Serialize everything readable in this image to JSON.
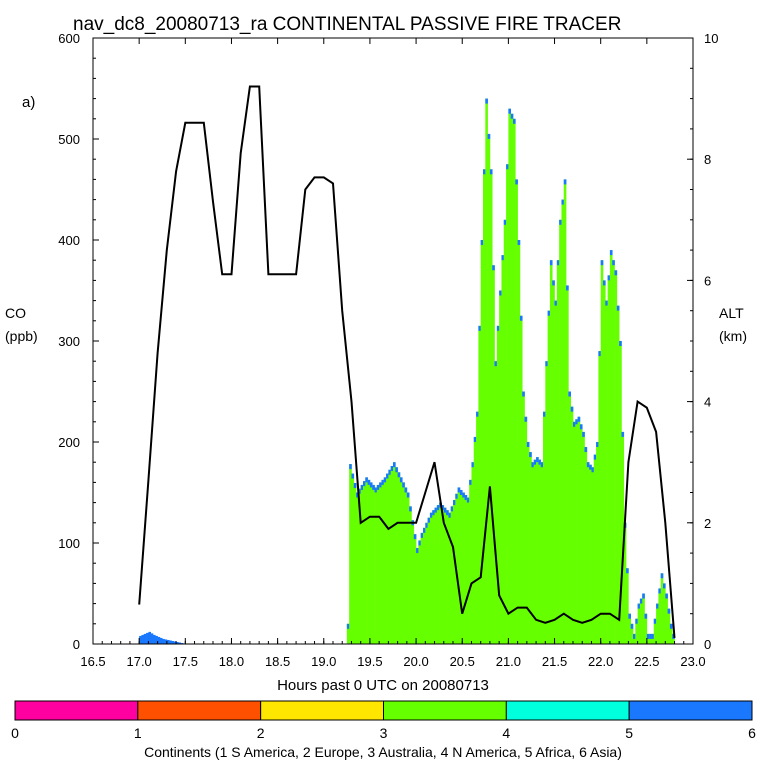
{
  "chart_data": {
    "type": "bar",
    "title": "nav_dc8_20080713_ra CONTINENTAL PASSIVE FIRE TRACER",
    "panel_label": "a)",
    "xlabel": "Hours past 0 UTC on 20080713",
    "ylabel_left": "CO",
    "ylabel_left_units": "(ppb)",
    "ylabel_right": "ALT",
    "ylabel_right_units": "(km)",
    "xlim": [
      16.5,
      23.0
    ],
    "ylim_left": [
      0,
      600
    ],
    "ylim_right": [
      0,
      10
    ],
    "x_ticks": [
      "16.5",
      "17.0",
      "17.5",
      "18.0",
      "18.5",
      "19.0",
      "19.5",
      "20.0",
      "20.5",
      "21.0",
      "21.5",
      "22.0",
      "22.5",
      "23.0"
    ],
    "y_ticks_left": [
      "0",
      "100",
      "200",
      "300",
      "400",
      "500",
      "600"
    ],
    "y_ticks_right": [
      "0",
      "2",
      "4",
      "6",
      "8",
      "10"
    ],
    "stack_colors": [
      "#ff00a0",
      "#ff5000",
      "#ffe600",
      "#66ff00",
      "#00ffdd",
      "#1a78ff"
    ],
    "co_green": {
      "x": [
        19.25,
        19.27,
        19.35,
        19.45,
        19.55,
        19.65,
        19.75,
        19.8,
        19.9,
        20.0,
        20.05,
        20.15,
        20.25,
        20.35,
        20.45,
        20.55,
        20.6,
        20.65,
        20.7,
        20.75,
        20.8,
        20.85,
        20.9,
        20.95,
        21.0,
        21.05,
        21.1,
        21.15,
        21.2,
        21.25,
        21.3,
        21.35,
        21.45,
        21.5,
        21.55,
        21.6,
        21.65,
        21.7,
        21.75,
        21.8,
        21.85,
        21.9,
        21.95,
        22.0,
        22.05,
        22.1,
        22.15,
        22.2,
        22.25,
        22.3,
        22.35,
        22.4,
        22.45,
        22.5,
        22.55,
        22.6,
        22.65,
        22.7,
        22.75,
        22.8
      ],
      "y": [
        20,
        180,
        150,
        165,
        155,
        165,
        180,
        170,
        150,
        95,
        110,
        130,
        140,
        130,
        155,
        145,
        180,
        230,
        400,
        540,
        470,
        280,
        350,
        420,
        530,
        520,
        400,
        250,
        200,
        180,
        185,
        180,
        380,
        340,
        420,
        460,
        250,
        220,
        225,
        210,
        180,
        175,
        200,
        380,
        340,
        390,
        370,
        300,
        120,
        30,
        10,
        40,
        50,
        10,
        10,
        40,
        70,
        50,
        20,
        0
      ],
      "unit": "ppb"
    },
    "co_asia": {
      "x": [
        17.0,
        17.05,
        17.1,
        17.15,
        17.2,
        17.25,
        17.3,
        17.35,
        17.4,
        17.45
      ],
      "y": [
        8,
        10,
        12,
        9,
        7,
        5,
        4,
        3,
        2,
        1
      ],
      "unit": "ppb"
    },
    "altitude": {
      "x": [
        17.0,
        17.1,
        17.2,
        17.3,
        17.4,
        17.5,
        17.7,
        17.8,
        17.9,
        18.0,
        18.1,
        18.2,
        18.3,
        18.4,
        18.5,
        18.7,
        18.8,
        18.9,
        19.0,
        19.1,
        19.2,
        19.3,
        19.4,
        19.5,
        19.6,
        19.7,
        19.8,
        19.9,
        20.0,
        20.1,
        20.2,
        20.3,
        20.4,
        20.5,
        20.6,
        20.7,
        20.8,
        20.85,
        20.9,
        21.0,
        21.1,
        21.2,
        21.3,
        21.4,
        21.5,
        21.6,
        21.7,
        21.8,
        21.9,
        22.0,
        22.1,
        22.2,
        22.3,
        22.4,
        22.5,
        22.6,
        22.7,
        22.8
      ],
      "y": [
        0.65,
        2.7,
        4.8,
        6.5,
        7.8,
        8.6,
        8.6,
        7.3,
        6.1,
        6.1,
        8.1,
        9.2,
        9.2,
        6.1,
        6.1,
        6.1,
        7.5,
        7.7,
        7.7,
        7.6,
        5.5,
        4.0,
        2.0,
        2.1,
        2.1,
        1.9,
        2.0,
        2.0,
        2.0,
        2.5,
        3.0,
        2.0,
        1.6,
        0.5,
        1.0,
        1.1,
        2.6,
        1.7,
        0.8,
        0.5,
        0.6,
        0.6,
        0.4,
        0.35,
        0.4,
        0.5,
        0.4,
        0.35,
        0.4,
        0.5,
        0.5,
        0.4,
        3.0,
        4.0,
        3.9,
        3.5,
        2.0,
        0.1
      ],
      "unit": "km"
    },
    "colorbar": {
      "ticks": [
        "0",
        "1",
        "2",
        "3",
        "4",
        "5",
        "6"
      ],
      "label": "Continents (1 S America, 2 Europe, 3 Australia, 4 N America, 5 Africa, 6 Asia)"
    }
  }
}
